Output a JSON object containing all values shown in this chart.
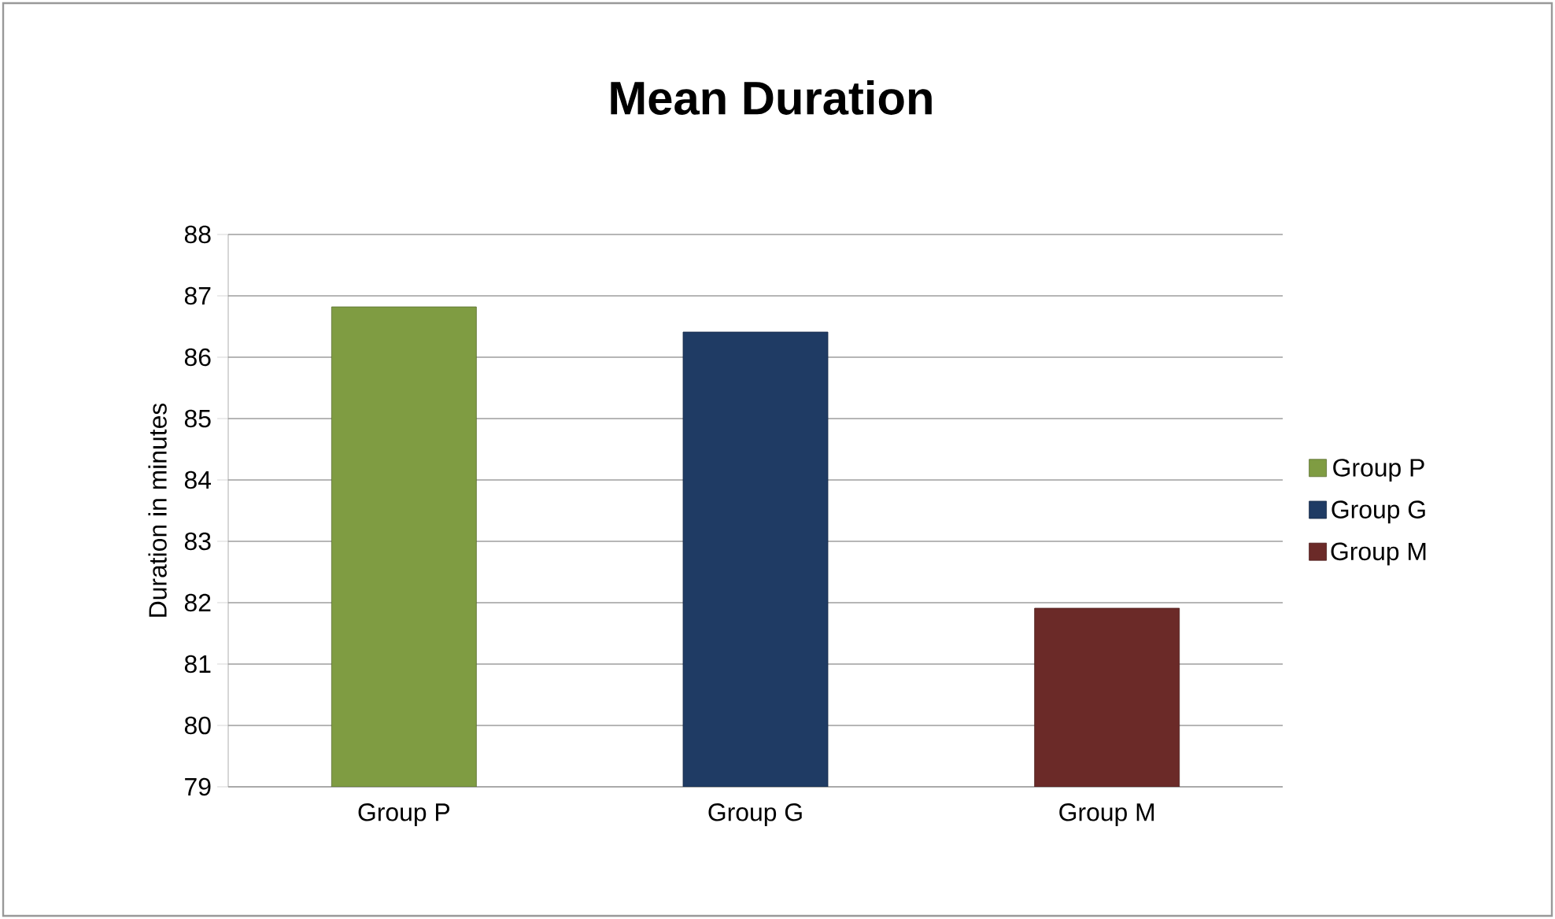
{
  "chart_data": {
    "type": "bar",
    "title": "Mean Duration",
    "ylabel": "Duration in minutes",
    "categories": [
      "Group P",
      "Group G",
      "Group M"
    ],
    "series": [
      {
        "name": "Group P",
        "color": "#7f9c42",
        "values": [
          86.82,
          null,
          null
        ]
      },
      {
        "name": "Group G",
        "color": "#1f3b64",
        "values": [
          null,
          86.41,
          null
        ]
      },
      {
        "name": "Group M",
        "color": "#6b2a28",
        "values": [
          null,
          null,
          81.91
        ]
      }
    ],
    "ylim": [
      79,
      88
    ],
    "yticks": [
      79,
      80,
      81,
      82,
      83,
      84,
      85,
      86,
      87,
      88
    ],
    "grid": "y",
    "legend": "right"
  }
}
